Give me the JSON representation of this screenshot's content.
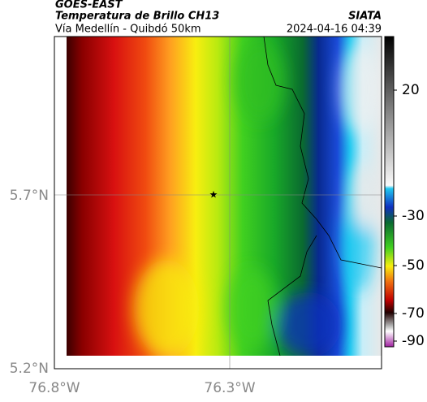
{
  "header": {
    "source": "GOES-EAST",
    "title": "Temperatura de Brillo CH13",
    "subtitle": "Vía Medellín - Quibdó 50km",
    "org": "SIATA",
    "timestamp": "2024-04-16 04:39"
  },
  "map": {
    "lat_labels": [
      "5.7°N",
      "5.2°N"
    ],
    "lon_labels": [
      "76.8°W",
      "76.3°W"
    ]
  },
  "colorbar": {
    "ticks": [
      20,
      -30,
      -50,
      -70,
      -90
    ]
  }
}
